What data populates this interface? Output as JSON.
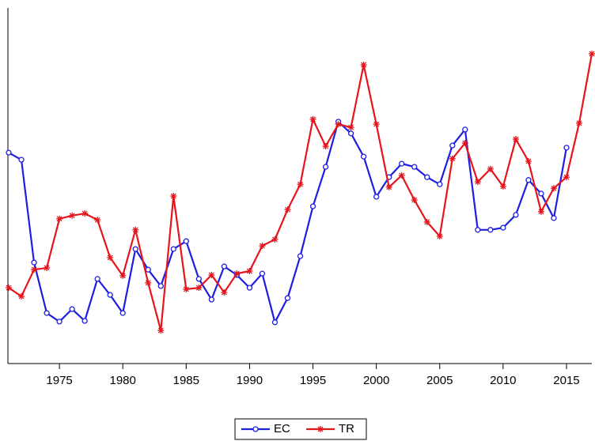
{
  "chart_data": {
    "type": "line",
    "x": [
      1971,
      1972,
      1973,
      1974,
      1975,
      1976,
      1977,
      1978,
      1979,
      1980,
      1981,
      1982,
      1983,
      1984,
      1985,
      1986,
      1987,
      1988,
      1989,
      1990,
      1991,
      1992,
      1993,
      1994,
      1995,
      1996,
      1997,
      1998,
      1999,
      2000,
      2001,
      2002,
      2003,
      2004,
      2005,
      2006,
      2007,
      2008,
      2009,
      2010,
      2011,
      2012,
      2013,
      2014,
      2015,
      2016,
      2017
    ],
    "series": [
      {
        "name": "EC",
        "color": "#1e1ee0",
        "marker": "circle",
        "values": [
          59.3,
          57.3,
          28.4,
          14.2,
          11.8,
          15.3,
          12.0,
          23.8,
          19.3,
          14.2,
          32.2,
          26.4,
          21.8,
          32.2,
          34.4,
          23.8,
          18.0,
          27.3,
          24.9,
          21.3,
          25.3,
          11.6,
          18.4,
          30.2,
          44.2,
          55.3,
          68.0,
          64.7,
          58.2,
          46.9,
          52.4,
          56.2,
          55.3,
          52.4,
          50.4,
          61.3,
          65.8,
          37.6,
          37.6,
          38.2,
          41.8,
          51.6,
          47.8,
          40.9,
          60.7,
          null,
          null
        ]
      },
      {
        "name": "TR",
        "color": "#e8141c",
        "marker": "asterisk",
        "values": [
          21.3,
          18.9,
          26.4,
          26.9,
          40.7,
          41.6,
          42.2,
          40.4,
          29.8,
          24.7,
          37.6,
          22.7,
          9.3,
          47.1,
          20.9,
          21.3,
          24.9,
          20.0,
          25.3,
          26.0,
          33.1,
          34.9,
          43.3,
          50.4,
          68.7,
          61.1,
          67.3,
          66.4,
          84.0,
          67.3,
          49.6,
          52.9,
          46.0,
          39.8,
          35.8,
          57.6,
          62.0,
          51.1,
          54.7,
          49.8,
          63.1,
          56.9,
          42.7,
          49.3,
          52.4,
          67.6,
          87.1
        ]
      }
    ],
    "xlim": [
      1971,
      2017
    ],
    "ylim": [
      0,
      100
    ],
    "xticks": [
      1975,
      1980,
      1985,
      1990,
      1995,
      2000,
      2005,
      2010,
      2015
    ],
    "legend": "bottom"
  }
}
